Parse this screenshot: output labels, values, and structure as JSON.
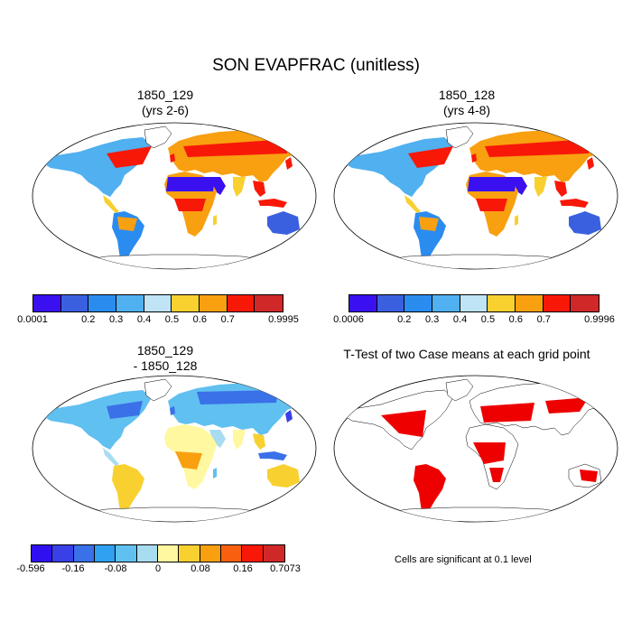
{
  "title": "SON EVAPFRAC (unitless)",
  "panels": {
    "p1": {
      "title_line1": "1850_129",
      "title_line2": "(yrs 2-6)"
    },
    "p2": {
      "title_line1": "1850_128",
      "title_line2": "(yrs 4-8)"
    },
    "p3": {
      "title_line1": "1850_129",
      "title_line2": "- 1850_128"
    },
    "p4": {
      "title_line1": "T-Test of two Case means at each grid point"
    }
  },
  "colorbars": {
    "cb1": {
      "colors": [
        "#3a10f0",
        "#3a60e0",
        "#2b8cf0",
        "#50b0f0",
        "#bfe4f5",
        "#f8d030",
        "#f8a010",
        "#f81808",
        "#d02828"
      ],
      "labels": [
        "0.0001",
        "0.2",
        "0.3",
        "0.4",
        "0.5",
        "0.6",
        "0.7",
        "0.9995"
      ]
    },
    "cb2": {
      "colors": [
        "#3a10f0",
        "#3a60e0",
        "#2b8cf0",
        "#50b0f0",
        "#bfe4f5",
        "#f8d030",
        "#f8a010",
        "#f81808",
        "#d02828"
      ],
      "labels": [
        "0.0006",
        "0.2",
        "0.3",
        "0.4",
        "0.5",
        "0.6",
        "0.7",
        "0.9996"
      ]
    },
    "cb3": {
      "colors": [
        "#3010f0",
        "#3a40e8",
        "#3a70e8",
        "#30a0f0",
        "#60c0f0",
        "#a8dcf0",
        "#fff8a0",
        "#f8d030",
        "#f8a010",
        "#f86010",
        "#f81808",
        "#d02828"
      ],
      "labels": [
        "-0.596",
        "-0.16",
        "-0.08",
        "0",
        "0.08",
        "0.16",
        "0.7073"
      ]
    }
  },
  "significance_note": "Cells are significant at 0.1 level",
  "significance_color": "#ee0000"
}
